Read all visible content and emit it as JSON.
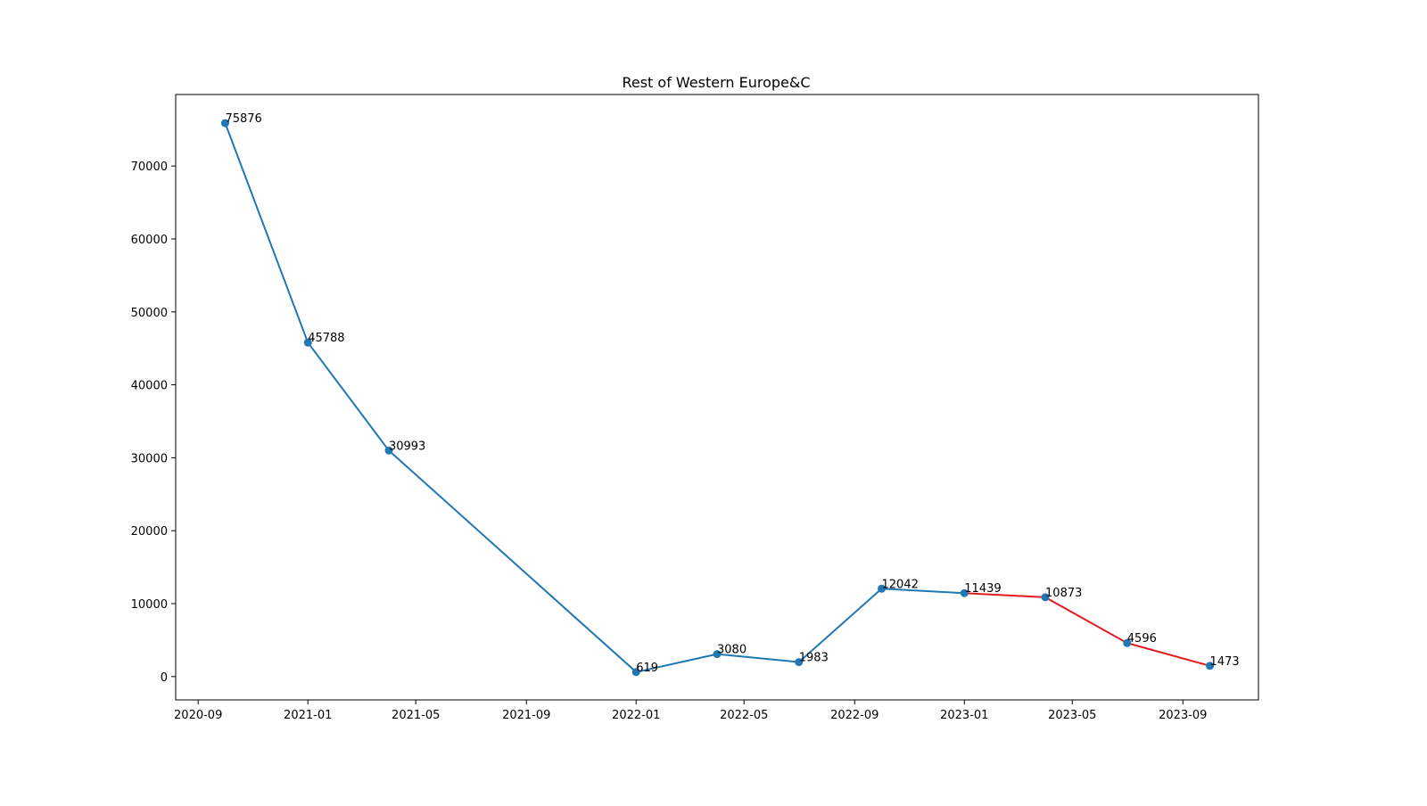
{
  "chart_data": {
    "type": "line",
    "title": "Rest of Western Europe&C",
    "xlabel": "",
    "ylabel": "",
    "x_tick_labels": [
      "2020-09",
      "2021-01",
      "2021-05",
      "2021-09",
      "2022-01",
      "2022-05",
      "2022-09",
      "2023-01",
      "2023-05",
      "2023-09"
    ],
    "y_tick_labels": [
      "0",
      "10000",
      "20000",
      "30000",
      "40000",
      "50000",
      "60000",
      "70000"
    ],
    "x": [
      "2020-10-01",
      "2021-01-01",
      "2021-04-01",
      "2022-01-01",
      "2022-04-01",
      "2022-07-01",
      "2022-10-01",
      "2023-01-01",
      "2023-04-01",
      "2023-07-01",
      "2023-10-01"
    ],
    "values": [
      75876,
      45788,
      30993,
      619,
      3080,
      1983,
      12042,
      11439,
      10873,
      4596,
      1473
    ],
    "data_labels": [
      "75876",
      "45788",
      "30993",
      "619",
      "3080",
      "1983",
      "12042",
      "11439",
      "10873",
      "4596",
      "1473"
    ],
    "red_segment_from_date": "2023-01-01",
    "xlim": [
      "2020-08-07",
      "2023-11-24"
    ],
    "ylim": [
      -3200,
      79800
    ],
    "grid": false,
    "colors": {
      "line": "#1f77b4",
      "marker": "#1f77b4",
      "highlight": "#e31a1c"
    }
  }
}
